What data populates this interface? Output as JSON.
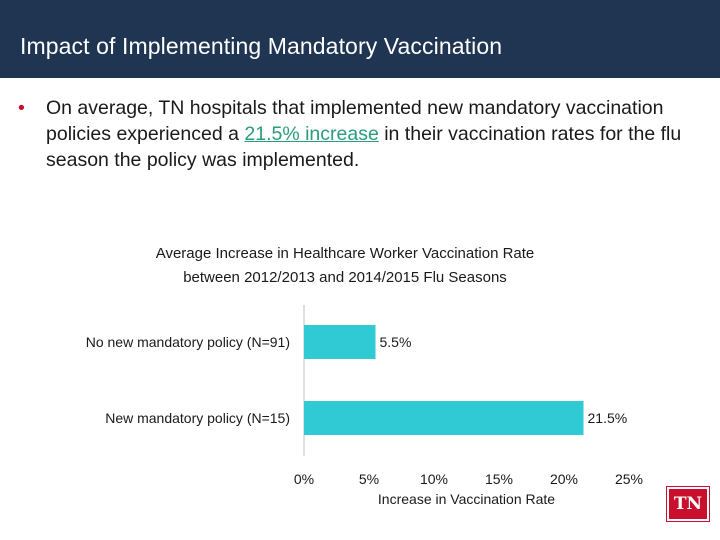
{
  "slide": {
    "title": "Impact of Implementing Mandatory Vaccination",
    "bullet_marker": "•",
    "bullet_part1": "On average, TN hospitals that implemented new mandatory vaccination policies experienced a ",
    "bullet_highlight": "21.5% increase",
    "bullet_part2": " in their vaccination rates for the flu season the policy was implemented.",
    "logo_text": "TN"
  },
  "colors": {
    "title_bar": "#1f3552",
    "bar": "#2fcad3",
    "highlight": "#2a9d7a",
    "logo": "#c8102e"
  },
  "chart_data": {
    "type": "bar",
    "orientation": "horizontal",
    "title": "Average Increase in Healthcare Worker Vaccination Rate between 2012/2013 and 2014/2015 Flu Seasons",
    "title_lines": [
      "Average Increase in Healthcare Worker Vaccination Rate",
      "between 2012/2013 and 2014/2015 Flu Seasons"
    ],
    "categories": [
      "No new mandatory policy (N=91)",
      "New mandatory policy (N=15)"
    ],
    "values": [
      5.5,
      21.5
    ],
    "value_labels": [
      "5.5%",
      "21.5%"
    ],
    "xlabel": "Increase in Vaccination Rate",
    "ylabel": "",
    "xlim": [
      0,
      25
    ],
    "xticks": [
      0,
      5,
      10,
      15,
      20,
      25
    ],
    "xtick_labels": [
      "0%",
      "5%",
      "10%",
      "15%",
      "20%",
      "25%"
    ],
    "grid": false,
    "legend": "none"
  }
}
